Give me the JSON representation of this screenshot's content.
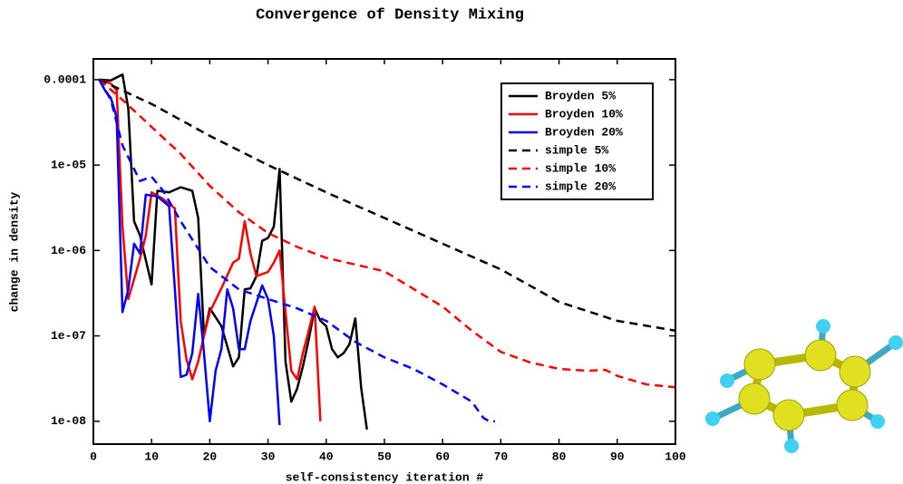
{
  "chart_data": {
    "type": "line",
    "title": "Convergence of Density Mixing",
    "x_label": "self-consistency iteration #",
    "y_label": "change in density",
    "xlim": [
      0,
      100
    ],
    "xticks": [
      0,
      10,
      20,
      30,
      40,
      50,
      60,
      70,
      80,
      90,
      100
    ],
    "ylim": [
      5.4e-09,
      0.000175
    ],
    "log_y": true,
    "yticks": [
      {
        "value": 0.0001,
        "label": "0.0001"
      },
      {
        "value": 1e-05,
        "label": "1e-05"
      },
      {
        "value": 1e-06,
        "label": "1e-06"
      },
      {
        "value": 1e-07,
        "label": "1e-07"
      },
      {
        "value": 1e-08,
        "label": "1e-08"
      }
    ],
    "legend": "upper right",
    "series": [
      {
        "name": "Broyden 5%",
        "color": "#000000",
        "line_style": "solid",
        "x": [
          1,
          3,
          5,
          6,
          7,
          8,
          10,
          11,
          13,
          15,
          17,
          18,
          19,
          20,
          22,
          24,
          25,
          26,
          27,
          28,
          29,
          30,
          31,
          32,
          33,
          34,
          35,
          36,
          37,
          38,
          39,
          40,
          41,
          42,
          43,
          44,
          45,
          46,
          47
        ],
        "values": [
          0.0001,
          9.8e-05,
          0.000115,
          4.6e-05,
          2.2e-06,
          1.5e-06,
          4e-07,
          5e-06,
          4.8e-06,
          5.5e-06,
          5e-06,
          2.4e-06,
          1e-07,
          2.1e-07,
          1.3e-07,
          4.4e-08,
          5.6e-08,
          3.5e-07,
          3.6e-07,
          5e-07,
          1.3e-06,
          1.4e-06,
          1.9e-06,
          9e-06,
          5e-08,
          1.7e-08,
          2.4e-08,
          4.4e-08,
          9e-08,
          2.1e-07,
          1.5e-07,
          1.3e-07,
          7e-08,
          5.6e-08,
          6.3e-08,
          8e-08,
          1.6e-07,
          2.5e-08,
          8e-09
        ]
      },
      {
        "name": "Broyden 10%",
        "color": "#ff0000",
        "line_style": "solid",
        "x": [
          1,
          3,
          4,
          5,
          6,
          8,
          9,
          10,
          12,
          14,
          15,
          16,
          17,
          18,
          19,
          20,
          22,
          24,
          25,
          26,
          27,
          28,
          30,
          31,
          32,
          33,
          34,
          35,
          36,
          37,
          38,
          39
        ],
        "values": [
          0.0001,
          9e-05,
          7.5e-05,
          1.9e-06,
          2.7e-07,
          8e-07,
          1.5e-06,
          4.8e-06,
          4e-06,
          3.1e-06,
          1.5e-07,
          5.3e-08,
          3.1e-08,
          5e-08,
          1e-07,
          1.9e-07,
          3.6e-07,
          7.2e-07,
          8e-07,
          2.2e-06,
          9.2e-07,
          5e-07,
          5.6e-07,
          7.2e-07,
          1e-06,
          1.9e-07,
          3.9e-08,
          3.1e-08,
          6.3e-08,
          1.15e-07,
          2.2e-07,
          1e-08
        ]
      },
      {
        "name": "Broyden 20%",
        "color": "#0000ff",
        "line_style": "solid",
        "x": [
          1,
          2,
          3,
          4,
          5,
          6,
          7,
          8,
          9,
          11,
          13,
          14,
          15,
          16,
          17,
          18,
          19,
          20,
          21,
          22,
          23,
          24,
          25,
          26,
          27,
          29,
          30,
          31,
          32
        ],
        "values": [
          0.0001,
          7.5e-05,
          6.1e-05,
          3.6e-05,
          1.9e-07,
          3.5e-07,
          1.2e-06,
          9.2e-07,
          4.5e-06,
          4.3e-06,
          3.3e-06,
          3.5e-07,
          3.3e-08,
          3.5e-08,
          6.3e-08,
          3.1e-07,
          6.3e-08,
          1e-08,
          3.9e-08,
          7e-08,
          3.5e-07,
          2.1e-07,
          7e-08,
          7e-08,
          1.5e-07,
          3.9e-07,
          2.7e-07,
          1e-07,
          9e-09
        ]
      },
      {
        "name": "simple 5%",
        "color": "#000000",
        "line_style": "dashed",
        "x": [
          1,
          10,
          20,
          30,
          40,
          50,
          60,
          70,
          80,
          90,
          100
        ],
        "values": [
          0.0001,
          5.2e-05,
          2.2e-05,
          1e-05,
          4.8e-06,
          2.4e-06,
          1.2e-06,
          6e-07,
          2.5e-07,
          1.5e-07,
          1.15e-07
        ]
      },
      {
        "name": "simple 10%",
        "color": "#ff0000",
        "line_style": "dashed",
        "x": [
          1,
          5,
          10,
          15,
          20,
          25,
          30,
          35,
          40,
          50,
          60,
          65,
          70,
          75,
          80,
          85,
          88,
          90,
          95,
          100
        ],
        "values": [
          0.0001,
          5.8e-05,
          2.8e-05,
          1.35e-05,
          5.7e-06,
          2.8e-06,
          1.6e-06,
          1.1e-06,
          8.2e-07,
          5.7e-07,
          2.2e-07,
          1.15e-07,
          6.5e-08,
          4.9e-08,
          4.1e-08,
          3.9e-08,
          4e-08,
          3.4e-08,
          2.7e-08,
          2.5e-08
        ]
      },
      {
        "name": "simple 20%",
        "color": "#0000ff",
        "line_style": "dashed",
        "x": [
          1,
          3,
          5,
          8,
          10,
          12,
          15,
          20,
          25,
          30,
          35,
          40,
          45,
          50,
          55,
          60,
          65,
          67,
          68,
          69
        ],
        "values": [
          0.0001,
          5.8e-05,
          1.7e-05,
          6.5e-06,
          7.3e-06,
          5e-06,
          2.2e-06,
          6.4e-07,
          3.5e-07,
          2.7e-07,
          2.1e-07,
          1.5e-07,
          8.5e-08,
          5.6e-08,
          4.1e-08,
          2.7e-08,
          1.7e-08,
          1.1e-08,
          1e-08,
          1e-08
        ]
      }
    ]
  }
}
